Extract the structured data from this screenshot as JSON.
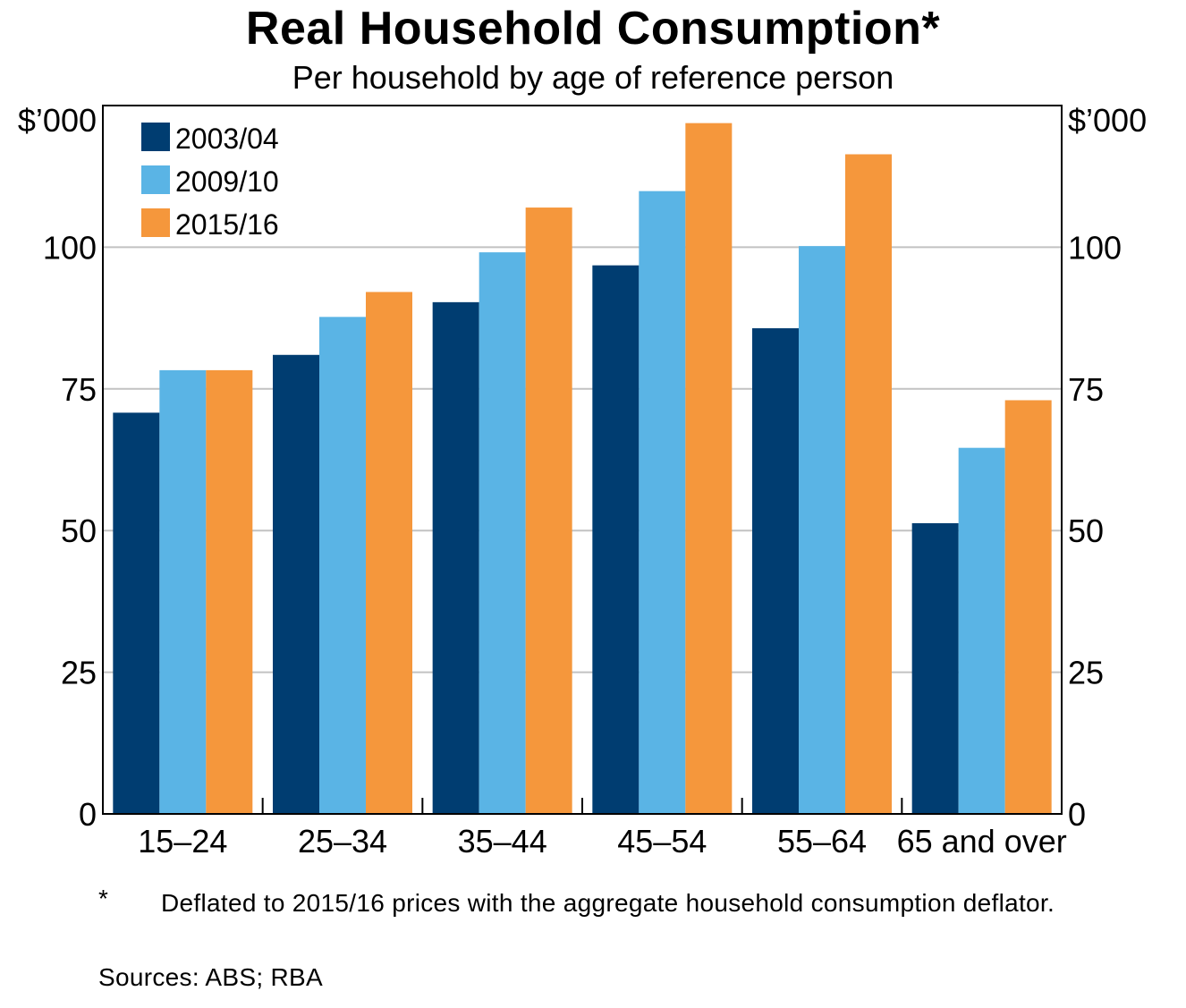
{
  "header": {
    "title": "Real Household Consumption*",
    "subtitle": "Per household by age of reference person"
  },
  "footnote": {
    "marker": "*",
    "text": "Deflated to 2015/16 prices with the aggregate household consumption deflator."
  },
  "sources": "Sources: ABS; RBA",
  "chart_data": {
    "type": "bar",
    "title": "Real Household Consumption*",
    "subtitle": "Per household by age of reference person",
    "categories": [
      "15–24",
      "25–34",
      "35–44",
      "45–54",
      "55–64",
      "65 and over"
    ],
    "series": [
      {
        "name": "2003/04",
        "color": "#003d71",
        "values": [
          70.8,
          81.0,
          90.3,
          96.8,
          85.7,
          51.3
        ]
      },
      {
        "name": "2009/10",
        "color": "#5ab4e5",
        "values": [
          78.3,
          87.7,
          99.1,
          109.9,
          100.2,
          64.6
        ]
      },
      {
        "name": "2015/16",
        "color": "#f5973c",
        "values": [
          78.3,
          92.1,
          107.0,
          121.9,
          116.4,
          73.0
        ]
      }
    ],
    "y_unit_left": "$’000",
    "y_unit_right": "$’000",
    "ylim": [
      0,
      125
    ],
    "yticks": [
      0,
      25,
      50,
      75,
      100
    ],
    "grid": true,
    "legend_position": "top-left"
  }
}
